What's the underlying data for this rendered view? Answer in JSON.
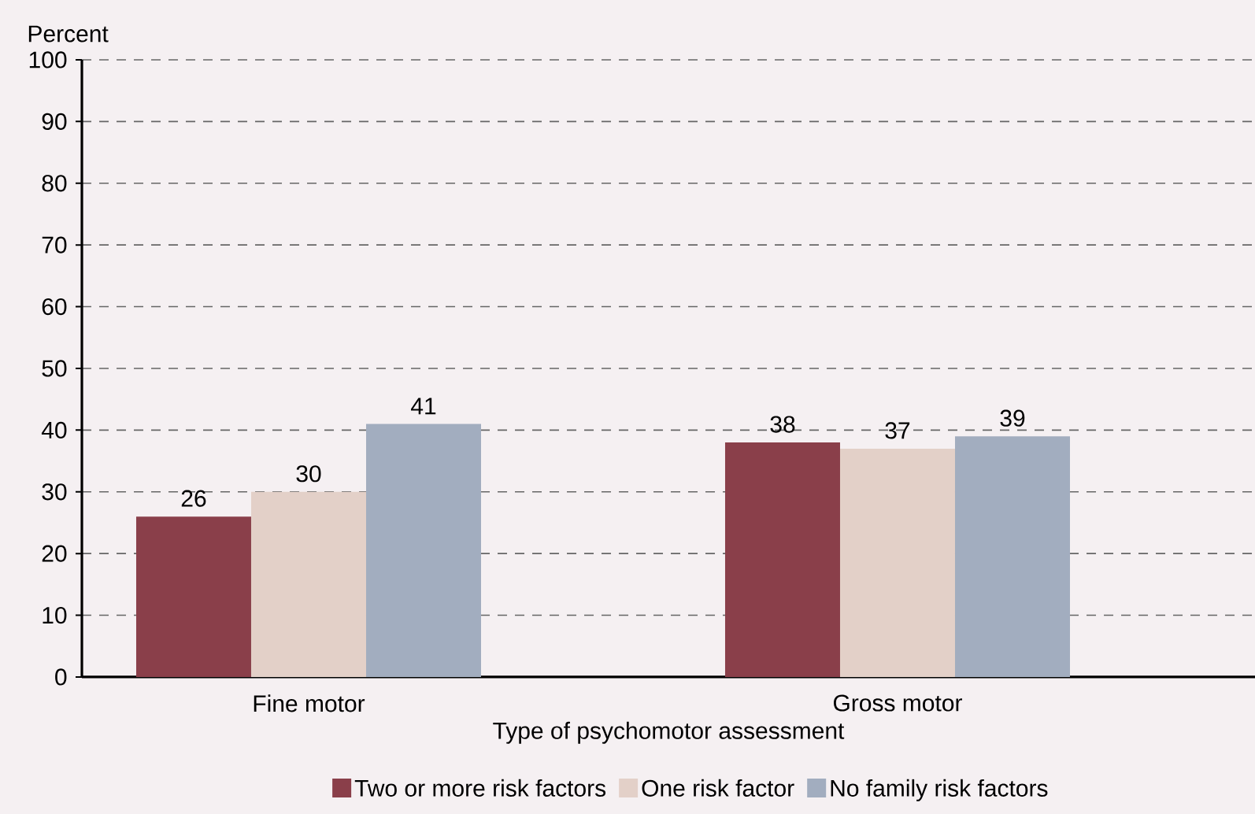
{
  "chart_data": {
    "type": "bar",
    "ylabel": "Percent",
    "xlabel": "Type of psychomotor assessment",
    "categories": [
      "Fine motor",
      "Gross motor"
    ],
    "series": [
      {
        "name": "Two or more risk factors",
        "color": "#8a3f4a",
        "values": [
          26,
          38
        ]
      },
      {
        "name": "One risk factor",
        "color": "#e3d0c8",
        "values": [
          30,
          37
        ]
      },
      {
        "name": "No family risk factors",
        "color": "#a2adbf",
        "values": [
          41,
          39
        ]
      }
    ],
    "ylim": [
      0,
      100
    ],
    "yticks": [
      0,
      10,
      20,
      30,
      40,
      50,
      60,
      70,
      80,
      90,
      100
    ],
    "grid": "y",
    "legend": "bottom",
    "data_labels": true
  }
}
